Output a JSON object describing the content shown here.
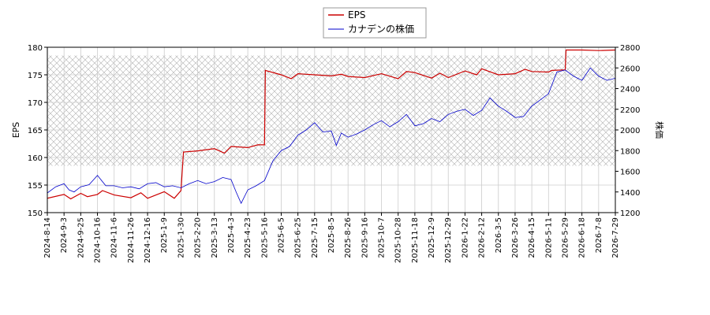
{
  "chart_data": {
    "type": "line",
    "legend": {
      "placement": "top-center",
      "entries": [
        "EPS",
        "カナデンの株価"
      ]
    },
    "left_axis": {
      "label": "EPS",
      "ylim": [
        150,
        180
      ],
      "ticks": [
        150,
        155,
        160,
        165,
        170,
        175,
        180
      ]
    },
    "right_axis": {
      "label": "株価",
      "ylim": [
        1200,
        2800
      ],
      "ticks": [
        1200,
        1400,
        1600,
        1800,
        2000,
        2200,
        2400,
        2600,
        2800
      ]
    },
    "x_ticks": [
      "2024-8-14",
      "2024-9-3",
      "2024-9-25",
      "2024-10-16",
      "2024-11-6",
      "2024-11-26",
      "2024-12-16",
      "2025-1-9",
      "2025-1-30",
      "2025-2-20",
      "2025-3-13",
      "2025-4-3",
      "2025-4-23",
      "2025-5-16",
      "2025-6-5",
      "2025-6-25",
      "2025-7-15",
      "2025-8-5",
      "2025-8-26",
      "2025-9-16",
      "2025-10-7",
      "2025-10-28",
      "2025-11-18",
      "2025-12-9",
      "2025-12-29",
      "2026-1-22",
      "2026-2-12",
      "2026-3-5",
      "2026-3-26",
      "2026-4-15",
      "2026-5-11",
      "2026-5-29",
      "2026-6-18",
      "2026-7-8",
      "2026-7-29"
    ],
    "hatch_region": {
      "x_start": "2024-8-14",
      "x_end": "2026-7-29",
      "y_eps": [
        158.5,
        178.5
      ]
    },
    "grid": true,
    "series": [
      {
        "name": "EPS",
        "axis": "left",
        "color": "#cc0000",
        "points": [
          [
            0,
            152.6
          ],
          [
            1,
            153.3
          ],
          [
            1.4,
            152.5
          ],
          [
            2,
            153.5
          ],
          [
            2.4,
            152.9
          ],
          [
            3,
            153.3
          ],
          [
            3.3,
            154.0
          ],
          [
            4,
            153.2
          ],
          [
            5,
            152.7
          ],
          [
            5.6,
            153.6
          ],
          [
            6,
            152.6
          ],
          [
            7,
            153.8
          ],
          [
            7.6,
            152.6
          ],
          [
            8,
            154.0
          ],
          [
            8.15,
            161.0
          ],
          [
            9,
            161.2
          ],
          [
            10,
            161.6
          ],
          [
            10.6,
            160.8
          ],
          [
            11,
            162.0
          ],
          [
            12,
            161.8
          ],
          [
            12.6,
            162.3
          ],
          [
            13,
            162.3
          ],
          [
            13.05,
            175.8
          ],
          [
            14,
            175.0
          ],
          [
            14.6,
            174.3
          ],
          [
            15,
            175.2
          ],
          [
            16,
            175.0
          ],
          [
            17,
            174.8
          ],
          [
            17.6,
            175.1
          ],
          [
            18,
            174.7
          ],
          [
            19,
            174.5
          ],
          [
            20,
            175.2
          ],
          [
            21,
            174.3
          ],
          [
            21.5,
            175.6
          ],
          [
            22,
            175.4
          ],
          [
            23,
            174.4
          ],
          [
            23.5,
            175.3
          ],
          [
            24,
            174.5
          ],
          [
            25,
            175.7
          ],
          [
            25.7,
            175.0
          ],
          [
            26,
            176.1
          ],
          [
            27,
            175.0
          ],
          [
            28,
            175.2
          ],
          [
            28.6,
            176.0
          ],
          [
            29,
            175.6
          ],
          [
            30,
            175.5
          ],
          [
            30.2,
            175.8
          ],
          [
            31,
            175.9
          ],
          [
            31.05,
            179.5
          ],
          [
            32,
            179.5
          ],
          [
            33,
            179.4
          ],
          [
            34,
            179.5
          ],
          [
            35,
            179.4
          ]
        ]
      },
      {
        "name": "カナデンの株価",
        "axis": "right",
        "color": "#0000cc",
        "points": [
          [
            0,
            1390
          ],
          [
            0.5,
            1450
          ],
          [
            1,
            1480
          ],
          [
            1.3,
            1420
          ],
          [
            1.6,
            1400
          ],
          [
            2,
            1450
          ],
          [
            2.5,
            1470
          ],
          [
            3,
            1560
          ],
          [
            3.5,
            1460
          ],
          [
            4,
            1460
          ],
          [
            4.5,
            1440
          ],
          [
            5,
            1450
          ],
          [
            5.5,
            1430
          ],
          [
            6,
            1480
          ],
          [
            6.5,
            1490
          ],
          [
            7,
            1450
          ],
          [
            7.5,
            1460
          ],
          [
            8,
            1440
          ],
          [
            8.5,
            1480
          ],
          [
            9,
            1510
          ],
          [
            9.5,
            1480
          ],
          [
            10,
            1500
          ],
          [
            10.5,
            1540
          ],
          [
            11,
            1520
          ],
          [
            11.3,
            1400
          ],
          [
            11.6,
            1290
          ],
          [
            12,
            1420
          ],
          [
            12.5,
            1460
          ],
          [
            13,
            1510
          ],
          [
            13.5,
            1700
          ],
          [
            14,
            1800
          ],
          [
            14.5,
            1840
          ],
          [
            15,
            1950
          ],
          [
            15.5,
            2000
          ],
          [
            16,
            2070
          ],
          [
            16.5,
            1980
          ],
          [
            17,
            1990
          ],
          [
            17.3,
            1850
          ],
          [
            17.6,
            1970
          ],
          [
            18,
            1930
          ],
          [
            18.5,
            1960
          ],
          [
            19,
            2000
          ],
          [
            19.5,
            2050
          ],
          [
            20,
            2090
          ],
          [
            20.5,
            2030
          ],
          [
            21,
            2080
          ],
          [
            21.5,
            2150
          ],
          [
            22,
            2040
          ],
          [
            22.5,
            2060
          ],
          [
            23,
            2110
          ],
          [
            23.5,
            2080
          ],
          [
            24,
            2150
          ],
          [
            24.5,
            2180
          ],
          [
            25,
            2200
          ],
          [
            25.5,
            2140
          ],
          [
            26,
            2190
          ],
          [
            26.5,
            2310
          ],
          [
            27,
            2230
          ],
          [
            27.5,
            2180
          ],
          [
            28,
            2120
          ],
          [
            28.5,
            2130
          ],
          [
            29,
            2230
          ],
          [
            29.5,
            2290
          ],
          [
            30,
            2350
          ],
          [
            30.5,
            2560
          ],
          [
            31,
            2580
          ],
          [
            31.5,
            2520
          ],
          [
            32,
            2480
          ],
          [
            32.5,
            2600
          ],
          [
            33,
            2520
          ],
          [
            33.5,
            2480
          ],
          [
            34,
            2500
          ],
          [
            34.5,
            2360
          ],
          [
            35,
            2460
          ]
        ]
      }
    ]
  }
}
